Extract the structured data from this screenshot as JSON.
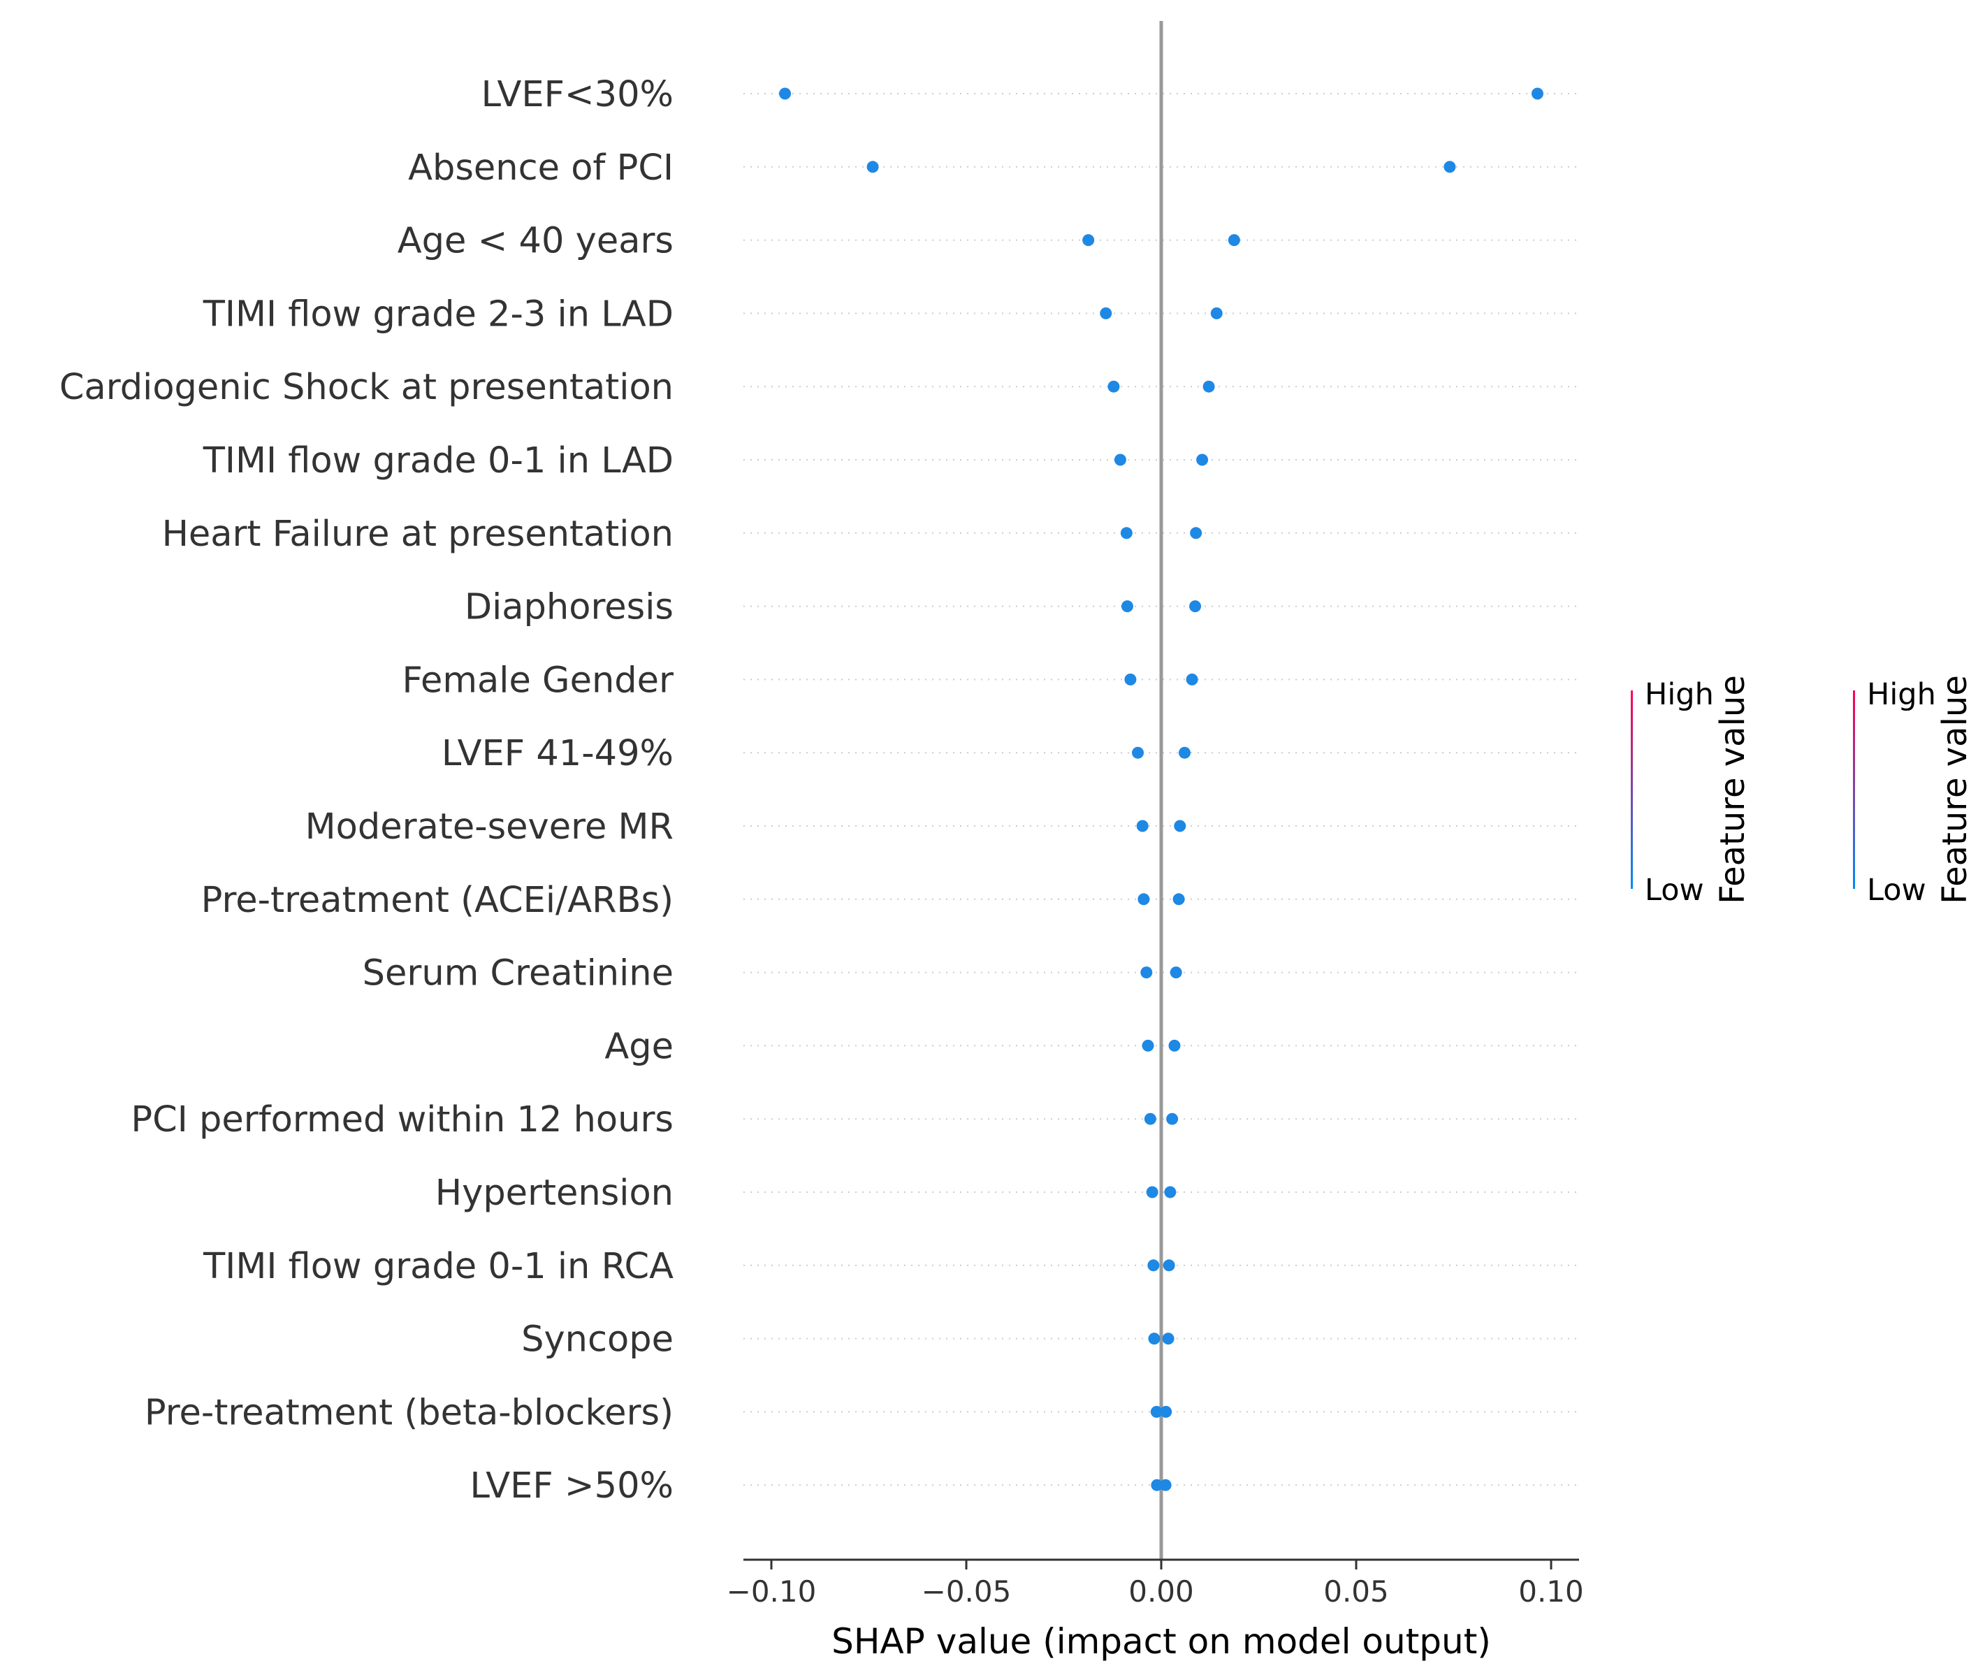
{
  "chart_data": {
    "type": "scatter",
    "title": "",
    "xlabel": "SHAP value (impact on model output)",
    "ylabel": "",
    "xlim": [
      -0.106,
      0.106
    ],
    "xticks": [
      -0.1,
      -0.05,
      0.0,
      0.05,
      0.1
    ],
    "xtick_labels": [
      "−0.10",
      "−0.05",
      "0.00",
      "0.05",
      "0.10"
    ],
    "grid": "dotted horizontal per feature",
    "point_color": "#1e88e5",
    "zero_line_color": "#999999",
    "features": [
      {
        "name": "LVEF<30%",
        "low": -0.0965,
        "high": 0.0965
      },
      {
        "name": "Absence of PCI",
        "low": -0.074,
        "high": 0.074
      },
      {
        "name": "Age < 40 years",
        "low": -0.0187,
        "high": 0.0187
      },
      {
        "name": "TIMI flow grade 2-3 in LAD",
        "low": -0.0142,
        "high": 0.0142
      },
      {
        "name": "Cardiogenic Shock at presentation",
        "low": -0.0122,
        "high": 0.0122
      },
      {
        "name": "TIMI flow grade 0-1 in LAD",
        "low": -0.0105,
        "high": 0.0105
      },
      {
        "name": "Heart Failure at presentation ",
        "low": -0.0089,
        "high": 0.0089
      },
      {
        "name": "Diaphoresis",
        "low": -0.0087,
        "high": 0.0087
      },
      {
        "name": "Female Gender",
        "low": -0.0079,
        "high": 0.0079
      },
      {
        "name": "LVEF 41-49%",
        "low": -0.006,
        "high": 0.006
      },
      {
        "name": "Moderate-severe MR",
        "low": -0.0048,
        "high": 0.0048
      },
      {
        "name": "Pre-treatment (ACEi/ARBs)",
        "low": -0.0045,
        "high": 0.0045
      },
      {
        "name": "Serum Creatinine",
        "low": -0.0038,
        "high": 0.0038
      },
      {
        "name": "Age",
        "low": -0.0034,
        "high": 0.0034
      },
      {
        "name": "PCI performed within 12 hours",
        "low": -0.0028,
        "high": 0.0028
      },
      {
        "name": "Hypertension",
        "low": -0.0023,
        "high": 0.0023
      },
      {
        "name": "TIMI flow grade 0-1 in RCA",
        "low": -0.002,
        "high": 0.002
      },
      {
        "name": "Syncope",
        "low": -0.0018,
        "high": 0.0018
      },
      {
        "name": "Pre-treatment (beta-blockers)",
        "low": -0.0012,
        "high": 0.0012
      },
      {
        "name": "LVEF >50%",
        "low": -0.0011,
        "high": 0.0011
      }
    ]
  },
  "colorbar": {
    "high_label": "High",
    "low_label": "Low",
    "title": "Feature value",
    "high_color": "#ff0051",
    "low_color": "#008bfb",
    "count": 2
  }
}
